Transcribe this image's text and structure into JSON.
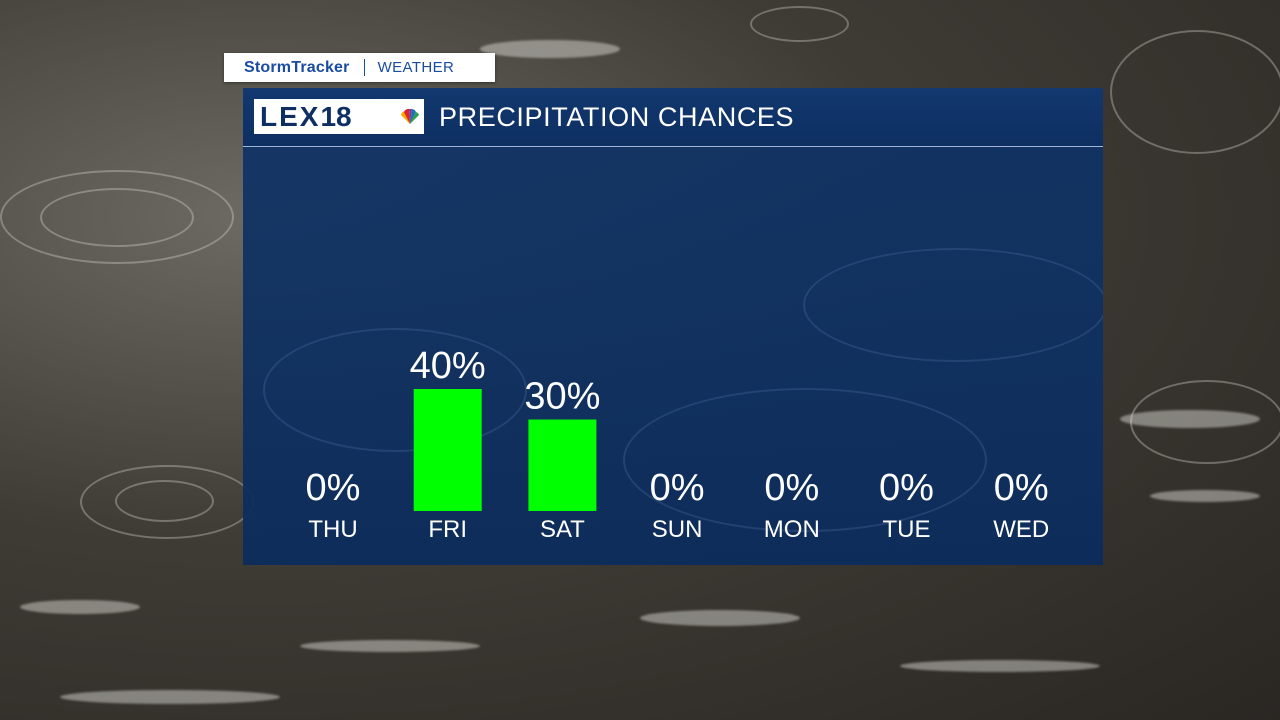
{
  "badge": {
    "brand": "StormTracker",
    "section": "WEATHER"
  },
  "header": {
    "logo_text": "LEX",
    "logo_number": "18",
    "title": "PRECIPITATION CHANCES"
  },
  "colors": {
    "bar": "#00ff00",
    "panel": "#0f3468",
    "text": "#ffffff",
    "badge_text": "#1a4ca0"
  },
  "chart_data": {
    "type": "bar",
    "categories": [
      "THU",
      "FRI",
      "SAT",
      "SUN",
      "MON",
      "TUE",
      "WED"
    ],
    "values": [
      0,
      40,
      30,
      0,
      0,
      0,
      0
    ],
    "value_labels": [
      "0%",
      "40%",
      "30%",
      "0%",
      "0%",
      "0%",
      "0%"
    ],
    "title": "PRECIPITATION CHANCES",
    "xlabel": "",
    "ylabel": "",
    "ylim": [
      0,
      100
    ],
    "grid": false,
    "legend": "none"
  }
}
